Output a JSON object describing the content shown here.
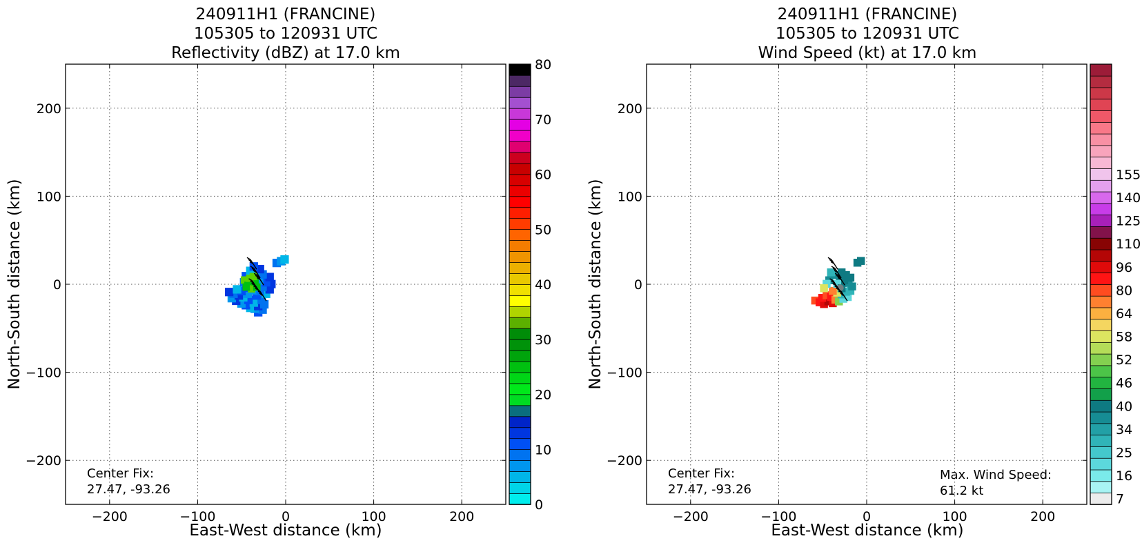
{
  "chart_data": [
    {
      "type": "heatmap",
      "title_lines": [
        "240911H1 (FRANCINE)",
        "105305 to 120931 UTC",
        "Reflectivity (dBZ) at 17.0 km"
      ],
      "xlabel": "East-West distance (km)",
      "ylabel": "North-South distance (km)",
      "xlim": [
        -250,
        250
      ],
      "ylim": [
        -250,
        250
      ],
      "xticks": [
        -200,
        -100,
        0,
        100,
        200
      ],
      "yticks": [
        -200,
        -100,
        0,
        100,
        200
      ],
      "xtick_labels": [
        "−200",
        "−100",
        "0",
        "100",
        "200"
      ],
      "ytick_labels": [
        "−200",
        "−100",
        "0",
        "100",
        "200"
      ],
      "grid": true,
      "annotations": {
        "center_fix_label": "Center Fix:",
        "center_fix_value": "27.47, -93.26"
      },
      "colorbar": {
        "range": [
          0,
          80
        ],
        "tick_values": [
          0,
          10,
          20,
          30,
          40,
          50,
          60,
          70,
          80
        ],
        "colors": [
          "#00eded",
          "#00d4e8",
          "#00b6e8",
          "#0096ee",
          "#0073f0",
          "#0050f5",
          "#0036e0",
          "#0024c8",
          "#0a6e7e",
          "#00dc22",
          "#00e81a",
          "#00d616",
          "#00c010",
          "#00a40c",
          "#00920a",
          "#008c08",
          "#5cb000",
          "#b0d400",
          "#ffff00",
          "#f0e000",
          "#e8c800",
          "#ecb000",
          "#f09400",
          "#f47c00",
          "#ff6400",
          "#ff3c00",
          "#ff1e00",
          "#ff0000",
          "#ec0000",
          "#d80000",
          "#c80000",
          "#cc001e",
          "#e00070",
          "#f000c8",
          "#e400e4",
          "#c838d8",
          "#a450d0",
          "#7c3ca4",
          "#4c2864",
          "#000000"
        ]
      },
      "echo_points": [
        [
          -33,
          -30
        ],
        [
          -28,
          -27
        ],
        [
          -37,
          -26
        ],
        [
          -42,
          -25
        ],
        [
          -33,
          -23
        ],
        [
          -47,
          -22
        ],
        [
          -26,
          -21
        ],
        [
          -52,
          -20
        ],
        [
          -38,
          -19
        ],
        [
          -58,
          -17
        ],
        [
          -44,
          -16
        ],
        [
          -29,
          -16
        ],
        [
          -63,
          -14
        ],
        [
          -50,
          -13
        ],
        [
          -55,
          -11
        ],
        [
          -35,
          -11
        ],
        [
          -61,
          -9
        ],
        [
          -45,
          -9
        ],
        [
          -24,
          -9
        ],
        [
          -66,
          -7
        ],
        [
          -52,
          -6
        ],
        [
          -31,
          -6
        ],
        [
          -40,
          -5
        ],
        [
          -57,
          -4
        ],
        [
          -20,
          -4
        ],
        [
          -47,
          -2
        ],
        [
          -28,
          -1
        ],
        [
          -36,
          0
        ],
        [
          -43,
          2
        ],
        [
          -18,
          2
        ],
        [
          -24,
          4
        ],
        [
          -49,
          4
        ],
        [
          -32,
          6
        ],
        [
          -41,
          8
        ],
        [
          -20,
          10
        ],
        [
          -47,
          11
        ],
        [
          -28,
          13
        ],
        [
          -36,
          14
        ],
        [
          -42,
          17
        ],
        [
          -31,
          19
        ],
        [
          -38,
          22
        ],
        [
          -12,
          26
        ],
        [
          -7,
          28
        ],
        [
          -3,
          30
        ]
      ],
      "core_points": [
        [
          -48,
          6
        ],
        [
          -44,
          0
        ],
        [
          -40,
          -4
        ],
        [
          -36,
          4
        ],
        [
          -42,
          8
        ],
        [
          -46,
          -2
        ],
        [
          -38,
          10
        ],
        [
          -34,
          -2
        ]
      ],
      "wind_barbs": [
        [
          -40,
          28
        ],
        [
          -36,
          18
        ],
        [
          -32,
          10
        ],
        [
          -38,
          4
        ],
        [
          -34,
          -2
        ],
        [
          -29,
          -8
        ]
      ]
    },
    {
      "type": "heatmap",
      "title_lines": [
        "240911H1 (FRANCINE)",
        "105305 to 120931 UTC",
        "Wind Speed (kt) at 17.0 km"
      ],
      "xlabel": "East-West distance (km)",
      "ylabel": "North-South distance (km)",
      "xlim": [
        -250,
        250
      ],
      "ylim": [
        -250,
        250
      ],
      "xticks": [
        -200,
        -100,
        0,
        100,
        200
      ],
      "yticks": [
        -200,
        -100,
        0,
        100,
        200
      ],
      "xtick_labels": [
        "−200",
        "−100",
        "0",
        "100",
        "200"
      ],
      "ytick_labels": [
        "−200",
        "−100",
        "0",
        "100",
        "200"
      ],
      "grid": true,
      "annotations": {
        "center_fix_label": "Center Fix:",
        "center_fix_value": "27.47, -93.26",
        "max_wind_label": "Max. Wind Speed:",
        "max_wind_value": "61.2 kt"
      },
      "colorbar": {
        "tick_labels": [
          "7",
          "16",
          "25",
          "34",
          "40",
          "46",
          "52",
          "58",
          "64",
          "80",
          "96",
          "110",
          "125",
          "140",
          "155"
        ],
        "tick_segments": [
          0,
          2,
          4,
          6,
          8,
          10,
          12,
          14,
          16,
          18,
          20,
          22,
          24,
          26,
          28
        ],
        "colors": [
          "#ececec",
          "#a8f4f4",
          "#7aeaea",
          "#5cd8dc",
          "#44c8cc",
          "#30b4b8",
          "#22a0a6",
          "#168c94",
          "#0e7a82",
          "#12a04a",
          "#22b440",
          "#4cc448",
          "#84d050",
          "#b4dc58",
          "#dce460",
          "#f4d660",
          "#fcb040",
          "#ff8030",
          "#ff4c20",
          "#ff1414",
          "#e00a0a",
          "#b40606",
          "#880404",
          "#82124a",
          "#a820b8",
          "#c83ce8",
          "#d868ec",
          "#e4a0ee",
          "#f0c4ec",
          "#f8b8d4",
          "#f8a4bc",
          "#f890a4",
          "#f87888",
          "#f05868",
          "#e04454",
          "#cc3848",
          "#b42c40",
          "#9c1c38"
        ]
      },
      "wind_points": [
        [
          -60,
          -17,
          9
        ],
        [
          -55,
          -19,
          10
        ],
        [
          -50,
          -21,
          11
        ],
        [
          -45,
          -18,
          12
        ],
        [
          -40,
          -20,
          11
        ],
        [
          -52,
          -14,
          10
        ],
        [
          -47,
          -11,
          9
        ],
        [
          -42,
          -13,
          10
        ],
        [
          -37,
          -16,
          8
        ],
        [
          -33,
          -18,
          4
        ],
        [
          -28,
          -15,
          3
        ],
        [
          -23,
          -13,
          3
        ],
        [
          -30,
          -10,
          2
        ],
        [
          -25,
          -7,
          2
        ],
        [
          -35,
          -8,
          6
        ],
        [
          -40,
          -6,
          8
        ],
        [
          -20,
          -6,
          2
        ],
        [
          -18,
          -1,
          1
        ],
        [
          -22,
          3,
          1
        ],
        [
          -27,
          6,
          0
        ],
        [
          -32,
          9,
          0
        ],
        [
          -37,
          12,
          1
        ],
        [
          -42,
          15,
          2
        ],
        [
          -30,
          15,
          0
        ],
        [
          -25,
          12,
          0
        ],
        [
          -20,
          9,
          0
        ],
        [
          -44,
          6,
          1
        ],
        [
          -47,
          2,
          3
        ],
        [
          -50,
          -3,
          6
        ],
        [
          -35,
          2,
          3
        ],
        [
          -30,
          -3,
          0
        ],
        [
          -12,
          26,
          0
        ],
        [
          -8,
          28,
          0
        ]
      ],
      "wind_barbs": [
        [
          -40,
          28
        ],
        [
          -36,
          18
        ],
        [
          -32,
          10
        ],
        [
          -38,
          4
        ],
        [
          -34,
          -2
        ],
        [
          -29,
          -8
        ]
      ]
    }
  ]
}
